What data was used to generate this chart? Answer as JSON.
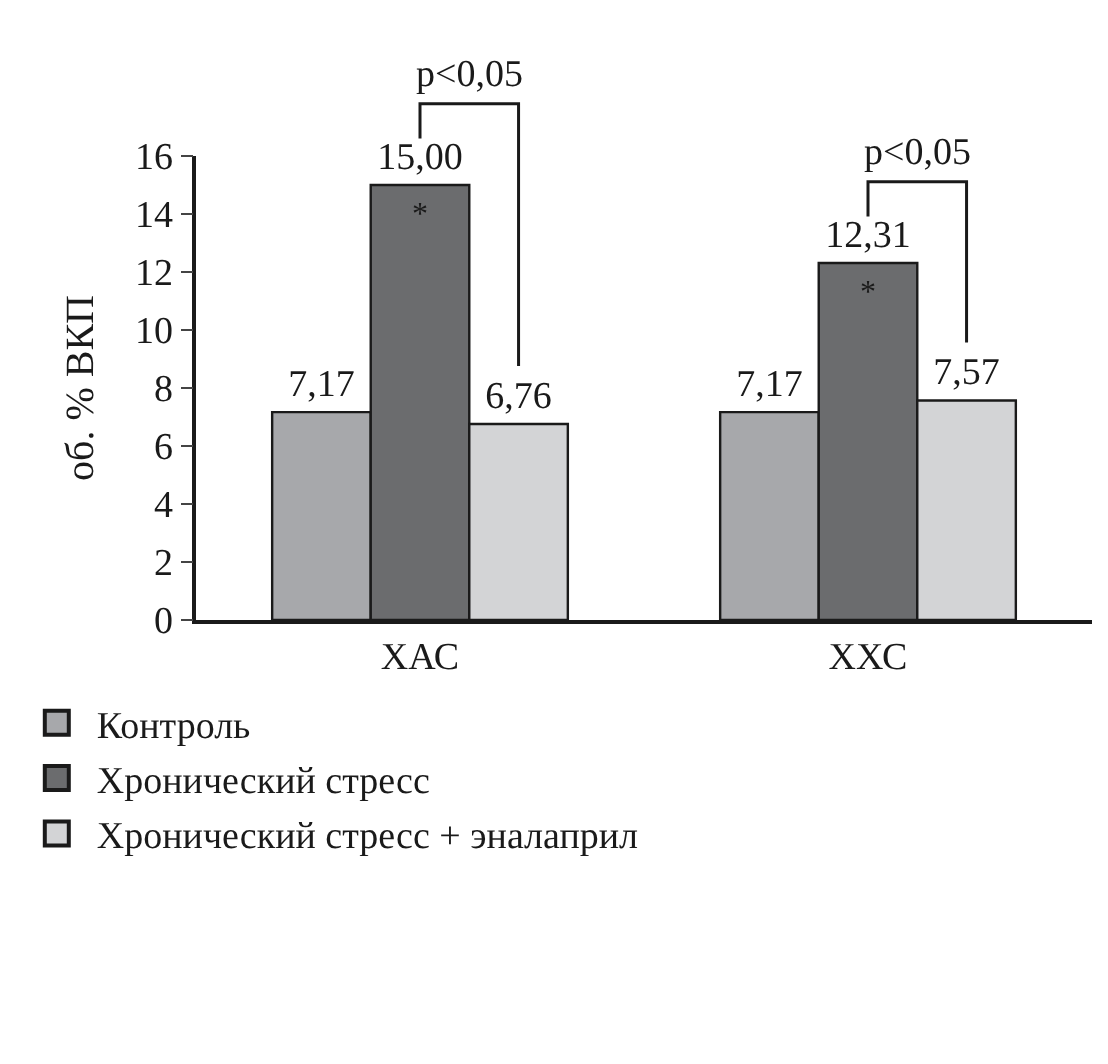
{
  "chart_data": {
    "type": "bar",
    "ylabel": "об. % ВКП",
    "categories": [
      "ХАС",
      "ХХС"
    ],
    "series": [
      {
        "name": "Контроль",
        "color": "#a7a8ab",
        "values": [
          7.17,
          7.17
        ],
        "value_labels": [
          "7,17",
          "7,17"
        ]
      },
      {
        "name": "Хронический стресс",
        "color": "#6b6c6e",
        "values": [
          15.0,
          12.31
        ],
        "value_labels": [
          "15,00",
          "12,31"
        ]
      },
      {
        "name": "Хронический стресс + эналаприл",
        "color": "#d3d4d6",
        "values": [
          6.76,
          7.57
        ],
        "value_labels": [
          "6,76",
          "7,57"
        ]
      }
    ],
    "ylim": [
      0,
      16
    ],
    "yticks": [
      0,
      2,
      4,
      6,
      8,
      10,
      12,
      14,
      16
    ],
    "annotations": [
      "*",
      "*",
      "p<0,05",
      "p<0,05"
    ],
    "legend": "bottom left"
  }
}
